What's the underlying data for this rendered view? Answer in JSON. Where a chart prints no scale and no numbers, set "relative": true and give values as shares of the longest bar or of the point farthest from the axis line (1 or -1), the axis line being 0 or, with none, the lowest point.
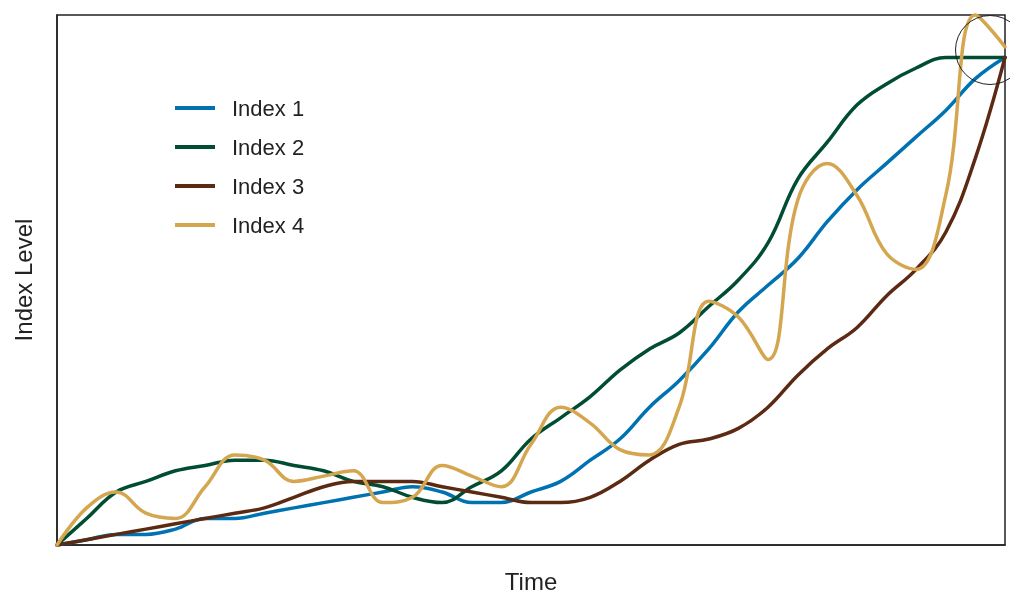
{
  "chart_data": {
    "type": "line",
    "relative": true,
    "xlabel": "Time",
    "ylabel": "Index Level",
    "legend": "top left",
    "grid": false,
    "marker": "none",
    "line_style": "solid",
    "categories": [
      null,
      null,
      null,
      null,
      null,
      null,
      null,
      null,
      null,
      null,
      null,
      null,
      null,
      null,
      null,
      null,
      null,
      null,
      null,
      null,
      null,
      null,
      null,
      null,
      null,
      null,
      null,
      null,
      null,
      null,
      null,
      null,
      null
    ],
    "series": [
      {
        "name": "Index 1",
        "color": "#0072b2",
        "values": [
          0,
          0.01,
          0.02,
          0.02,
          0.03,
          0.05,
          0.05,
          0.06,
          0.07,
          0.08,
          0.09,
          0.1,
          0.11,
          0.1,
          0.08,
          0.08,
          0.1,
          0.12,
          0.16,
          0.2,
          0.26,
          0.31,
          0.37,
          0.44,
          0.49,
          0.54,
          0.61,
          0.67,
          0.72,
          0.77,
          0.82,
          0.88,
          0.92
        ]
      },
      {
        "name": "Index 2",
        "color": "#004d33",
        "values": [
          0,
          0.05,
          0.1,
          0.12,
          0.14,
          0.15,
          0.16,
          0.16,
          0.15,
          0.14,
          0.12,
          0.11,
          0.09,
          0.08,
          0.11,
          0.14,
          0.2,
          0.24,
          0.28,
          0.33,
          0.37,
          0.4,
          0.45,
          0.5,
          0.57,
          0.69,
          0.76,
          0.83,
          0.87,
          0.9,
          0.92,
          0.92,
          0.92
        ]
      },
      {
        "name": "Index 3",
        "color": "#5c2a12",
        "values": [
          0,
          0.01,
          0.02,
          0.03,
          0.04,
          0.05,
          0.06,
          0.07,
          0.09,
          0.11,
          0.12,
          0.12,
          0.12,
          0.11,
          0.1,
          0.09,
          0.08,
          0.08,
          0.09,
          0.12,
          0.16,
          0.19,
          0.2,
          0.22,
          0.26,
          0.32,
          0.37,
          0.41,
          0.47,
          0.52,
          0.59,
          0.73,
          0.92
        ]
      },
      {
        "name": "Index 4",
        "color": "#d4a64f",
        "values": [
          0,
          0.07,
          0.1,
          0.06,
          0.05,
          0.11,
          0.17,
          0.16,
          0.12,
          0.13,
          0.14,
          0.08,
          0.09,
          0.15,
          0.13,
          0.11,
          0.19,
          0.26,
          0.23,
          0.18,
          0.17,
          0.26,
          0.46,
          0.43,
          0.35,
          0.65,
          0.72,
          0.66,
          0.55,
          0.52,
          0.66,
          1,
          0.94
        ]
      }
    ]
  }
}
